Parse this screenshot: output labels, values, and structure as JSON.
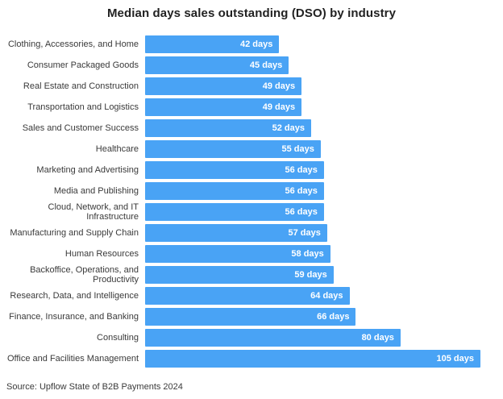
{
  "title": "Median days sales outstanding (DSO) by industry",
  "source": "Source: Upflow State of B2B Payments 2024",
  "colors": {
    "background": "#ffffff",
    "bar": "#49a3f5",
    "title_text": "#222222",
    "category_label_text": "#3a3a3a",
    "value_label_text": "#ffffff",
    "source_text": "#3a3a3a"
  },
  "chart_data": {
    "type": "bar",
    "orientation": "horizontal",
    "title": "Median days sales outstanding (DSO) by industry",
    "categories": [
      "Clothing, Accessories, and Home",
      "Consumer Packaged Goods",
      "Real Estate and Construction",
      "Transportation and Logistics",
      "Sales and Customer Success",
      "Healthcare",
      "Marketing and Advertising",
      "Media and Publishing",
      "Cloud, Network, and IT\nInfrastructure",
      "Manufacturing and Supply Chain",
      "Human Resources",
      "Backoffice, Operations, and\nProductivity",
      "Research, Data, and Intelligence",
      "Finance, Insurance, and Banking",
      "Consulting",
      "Office and Facilities Management"
    ],
    "values": [
      42,
      45,
      49,
      49,
      52,
      55,
      56,
      56,
      56,
      57,
      58,
      59,
      64,
      66,
      80,
      105
    ],
    "value_labels": [
      "42 days",
      "45 days",
      "49 days",
      "49 days",
      "52 days",
      "55 days",
      "56 days",
      "56 days",
      "56 days",
      "57 days",
      "58 days",
      "59 days",
      "64 days",
      "66 days",
      "80 days",
      "105 days"
    ],
    "unit": "days",
    "xlabel": "",
    "ylabel": "",
    "xlim": [
      0,
      105
    ],
    "grid": false,
    "legend": false,
    "value_labels_position": "inside-end",
    "source": "Source: Upflow State of B2B Payments 2024"
  }
}
